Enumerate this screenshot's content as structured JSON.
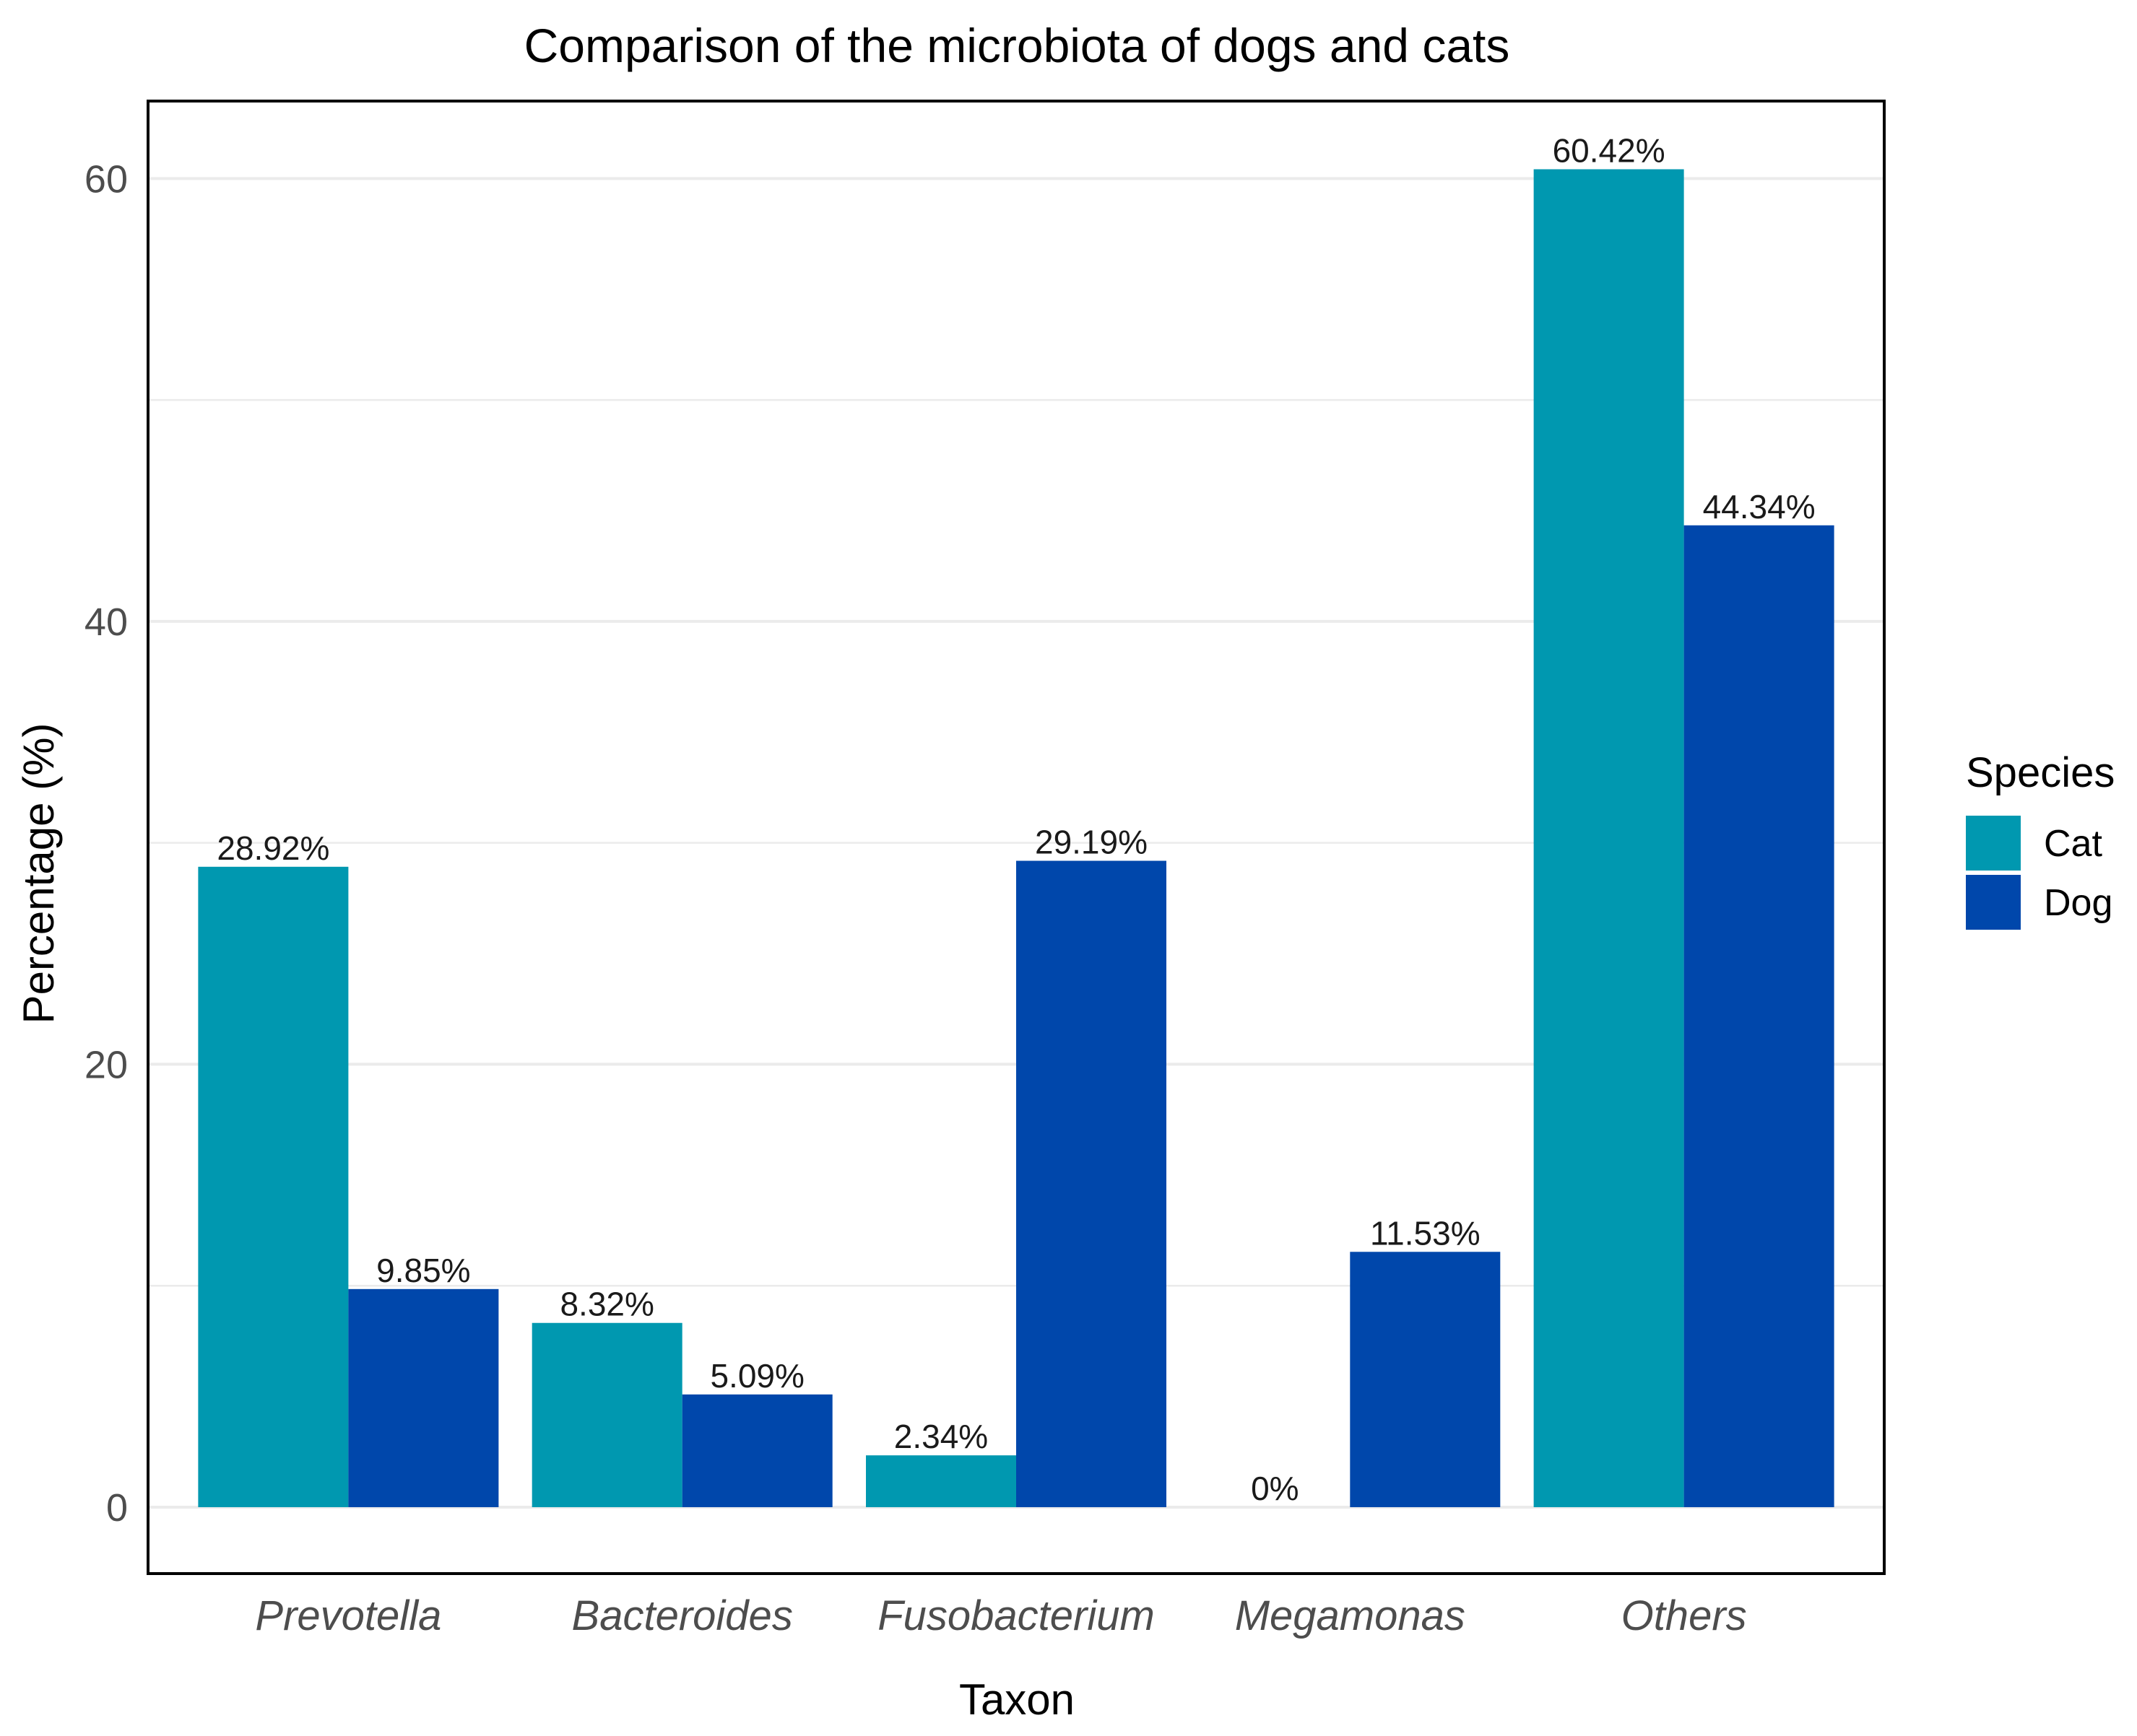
{
  "chart_data": {
    "type": "bar",
    "title": "Comparison of the microbiota of dogs and cats",
    "xlabel": "Taxon",
    "ylabel": "Percentage (%)",
    "categories": [
      "Prevotella",
      "Bacteroides",
      "Fusobacterium",
      "Megamonas",
      "Others"
    ],
    "series": [
      {
        "name": "Cat",
        "color": "#0098b0",
        "values": [
          28.92,
          8.32,
          2.34,
          0,
          60.42
        ],
        "labels": [
          "28.92%",
          "8.32%",
          "2.34%",
          "0%",
          "60.42%"
        ]
      },
      {
        "name": "Dog",
        "color": "#0047ab",
        "values": [
          9.85,
          5.09,
          29.19,
          11.53,
          44.34
        ],
        "labels": [
          "9.85%",
          "5.09%",
          "29.19%",
          "11.53%",
          "44.34%"
        ]
      }
    ],
    "ylim": [
      -3,
      63.5
    ],
    "yticks": [
      0,
      20,
      40,
      60
    ],
    "ytick_labels": [
      "0",
      "20",
      "40",
      "60"
    ],
    "minor_gridlines": [
      10,
      30,
      50
    ],
    "legend": {
      "title": "Species",
      "position": "right"
    },
    "grid": true
  }
}
